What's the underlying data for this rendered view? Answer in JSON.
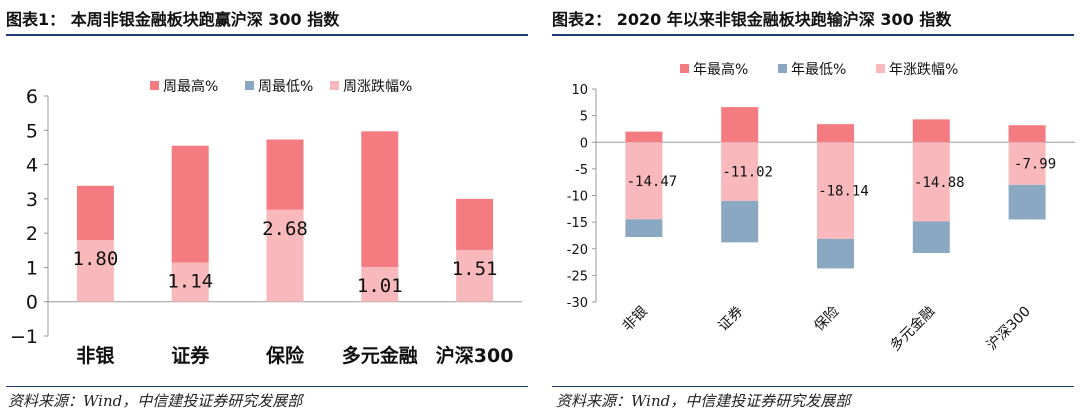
{
  "figure1": {
    "title": "图表1： 本周非银金融板块跑赢沪深 300 指数",
    "source": "资料来源：Wind，中信建投证券研究发展部"
  },
  "figure2": {
    "title": "图表2： 2020 年以来非银金融板块跑输沪深 300 指数",
    "source": "资料来源：Wind，中信建投证券研究发展部"
  },
  "colors": {
    "high": "#f47b80",
    "low": "#8aa8c2",
    "change": "#f9b9bc",
    "rule": "#1f3b73"
  },
  "chart_data": [
    {
      "type": "bar",
      "categories": [
        "非银",
        "证券",
        "保险",
        "多元金融",
        "沪深300"
      ],
      "series": [
        {
          "name": "周最高%",
          "values": [
            3.38,
            4.55,
            4.73,
            4.97,
            3.0
          ]
        },
        {
          "name": "周最低%",
          "values": [
            null,
            null,
            null,
            null,
            null
          ]
        },
        {
          "name": "周涨跌幅%",
          "values": [
            1.8,
            1.14,
            2.68,
            1.01,
            1.51
          ]
        }
      ],
      "data_labels": [
        "1.80",
        "1.14",
        "2.68",
        "1.01",
        "1.51"
      ],
      "yticks": [
        "6",
        "5",
        "4",
        "3",
        "2",
        "1",
        "0",
        "−1"
      ],
      "ylim": [
        -1,
        6
      ],
      "legend": "top"
    },
    {
      "type": "bar",
      "categories": [
        "非银",
        "证券",
        "保险",
        "多元金融",
        "沪深300"
      ],
      "series": [
        {
          "name": "年最高%",
          "values": [
            2.0,
            6.6,
            3.4,
            4.3,
            3.2
          ]
        },
        {
          "name": "年最低%",
          "values": [
            -17.8,
            -18.8,
            -23.7,
            -20.8,
            -14.5
          ]
        },
        {
          "name": "年涨跌幅%",
          "values": [
            -14.47,
            -11.02,
            -18.14,
            -14.88,
            -7.99
          ]
        }
      ],
      "data_labels": [
        "-14.47",
        "-11.02",
        "-18.14",
        "-14.88",
        "-7.99"
      ],
      "yticks": [
        "10",
        "5",
        "0",
        "-5",
        "-10",
        "-15",
        "-20",
        "-25",
        "-30"
      ],
      "ylim": [
        -30,
        10
      ],
      "legend": "top"
    }
  ]
}
